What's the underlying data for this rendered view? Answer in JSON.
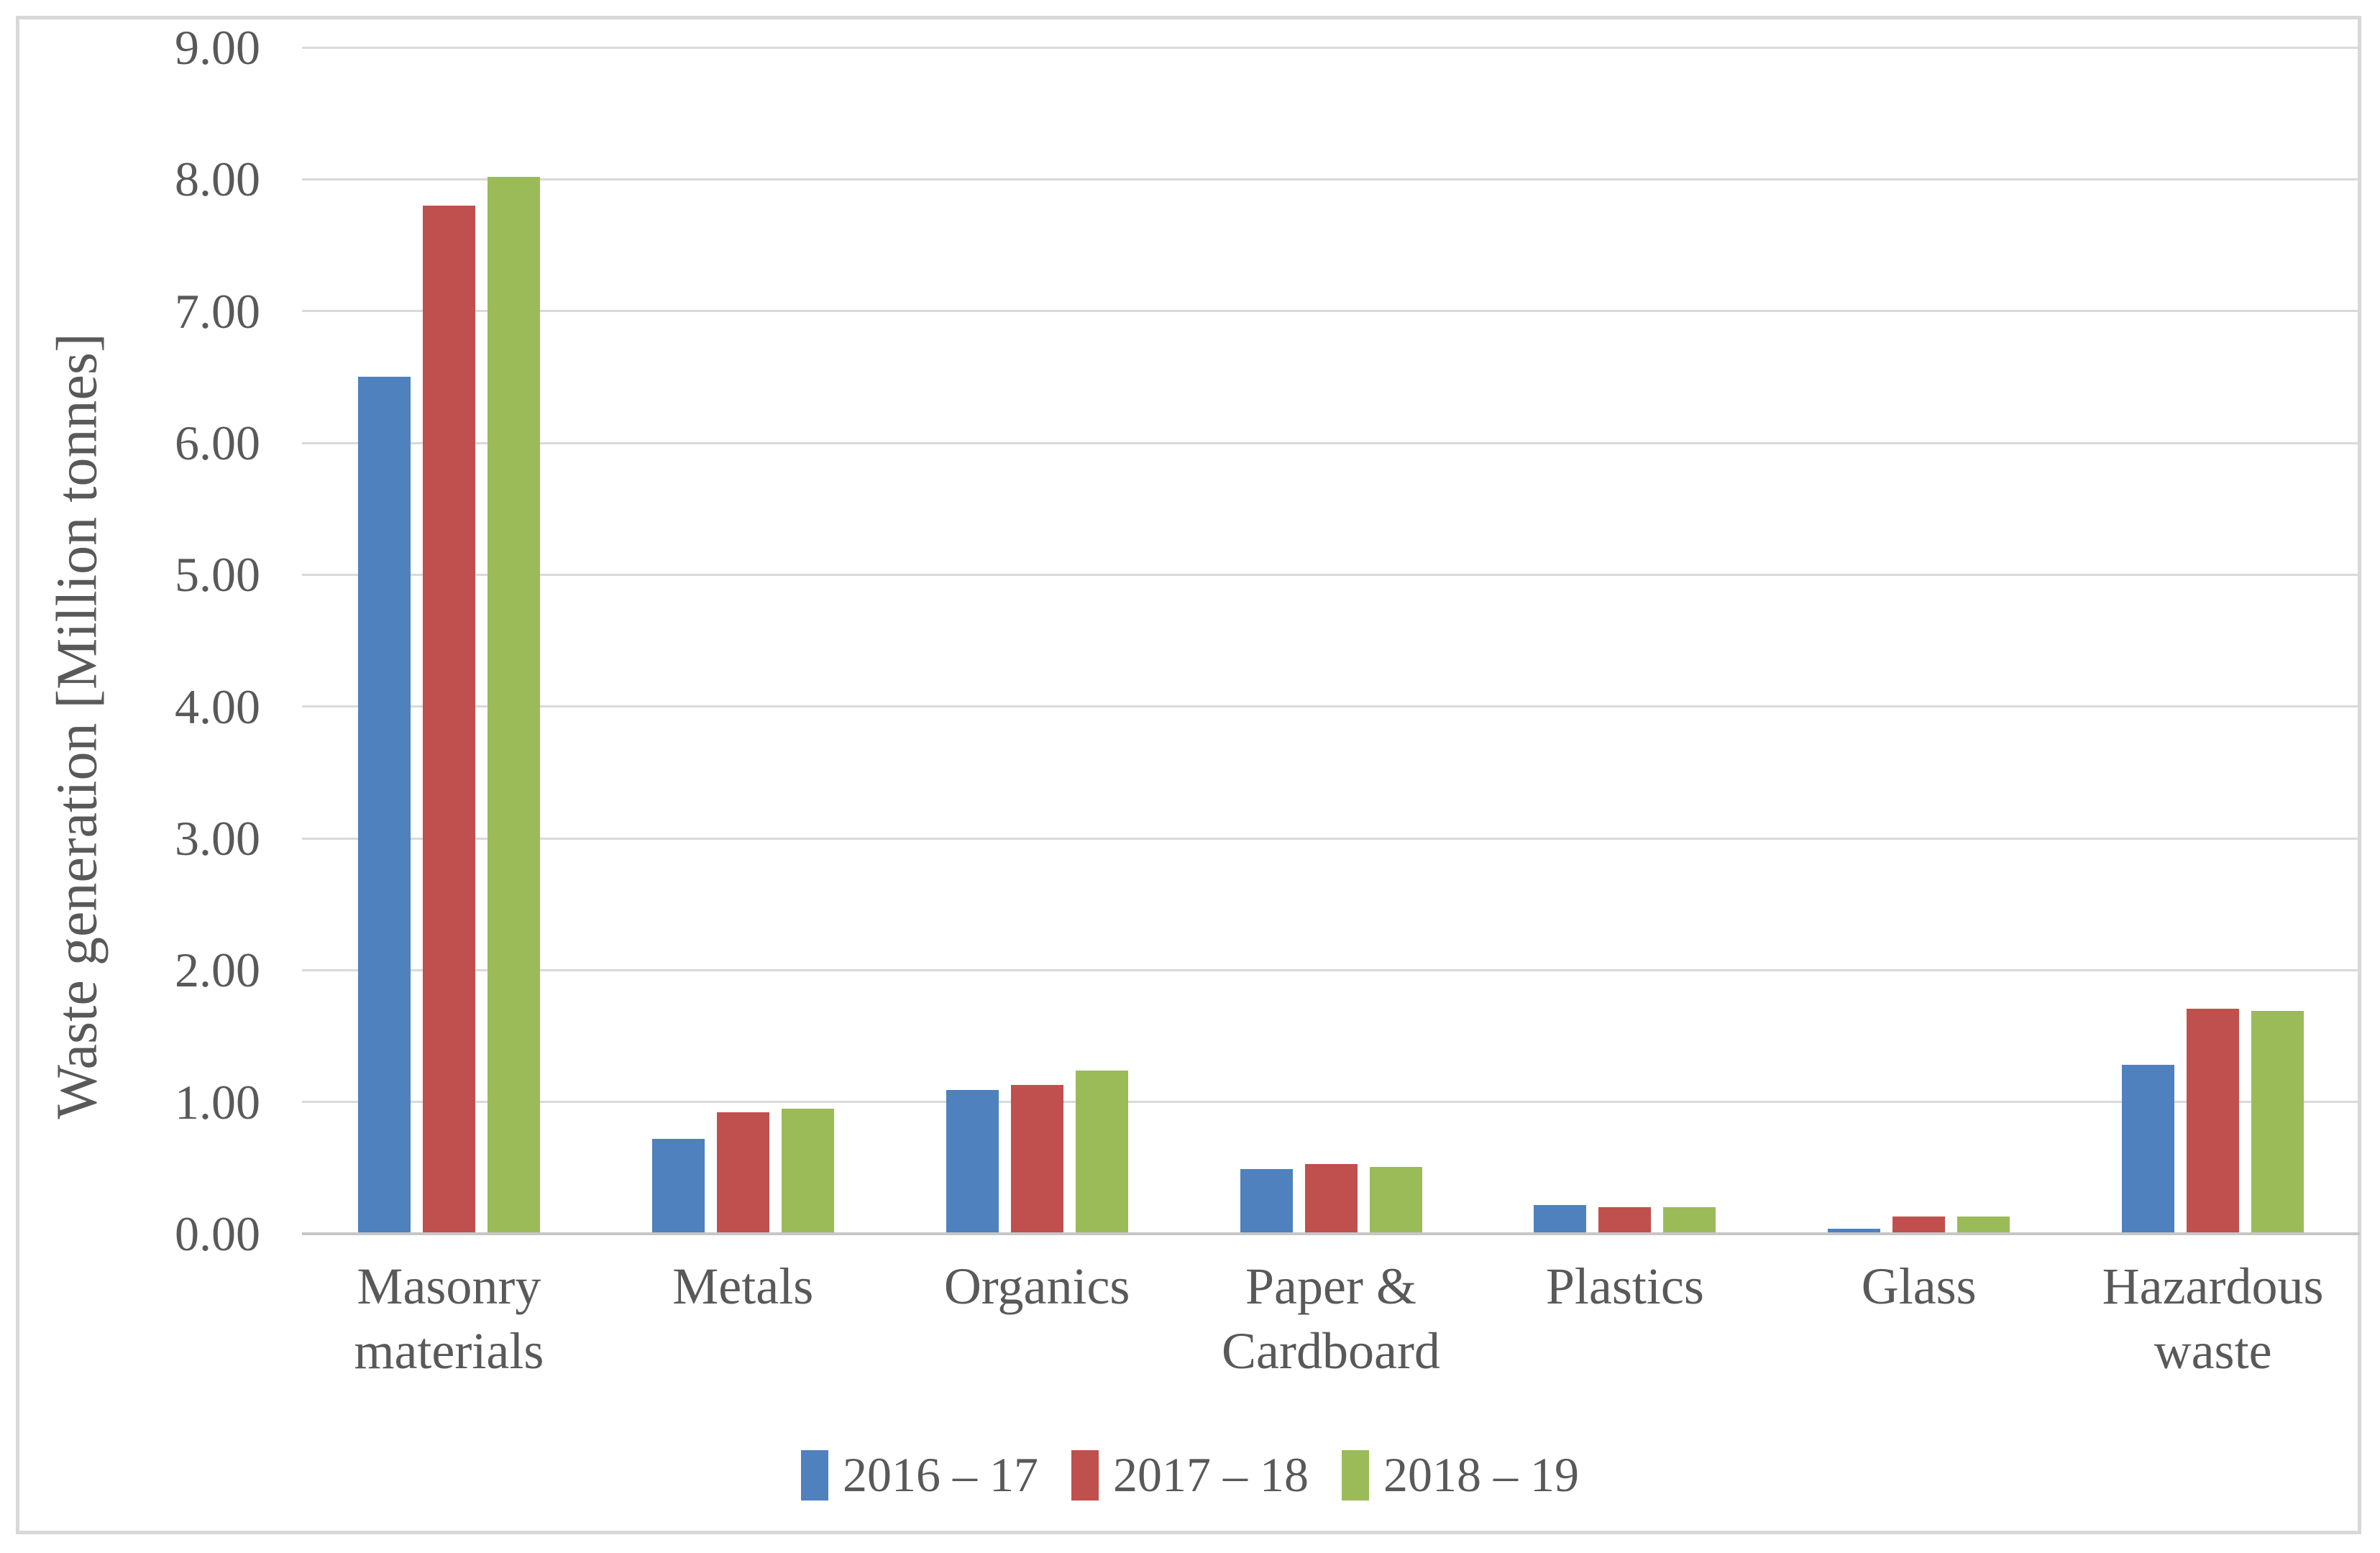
{
  "chart_data": {
    "type": "bar",
    "title": "",
    "xlabel": "",
    "ylabel": "Waste generation [Million tonnes]",
    "ylim": [
      0,
      9
    ],
    "ytick_labels": [
      "0.00",
      "1.00",
      "2.00",
      "3.00",
      "4.00",
      "5.00",
      "6.00",
      "7.00",
      "8.00",
      "9.00"
    ],
    "grid": true,
    "legend_position": "bottom",
    "categories": [
      "Masonry materials",
      "Metals",
      "Organics",
      "Paper & Cardboard",
      "Plastics",
      "Glass",
      "Hazardous waste"
    ],
    "category_label_lines": [
      [
        "Masonry",
        "materials"
      ],
      [
        "Metals"
      ],
      [
        "Organics"
      ],
      [
        "Paper &",
        "Cardboard"
      ],
      [
        "Plastics"
      ],
      [
        "Glass"
      ],
      [
        "Hazardous",
        "waste"
      ]
    ],
    "series": [
      {
        "name": "2016 – 17",
        "color": "#4E81BD",
        "values": [
          6.5,
          0.72,
          1.09,
          0.49,
          0.22,
          0.04,
          1.28
        ]
      },
      {
        "name": "2017 – 18",
        "color": "#C0504D",
        "values": [
          7.8,
          0.92,
          1.13,
          0.53,
          0.2,
          0.13,
          1.71
        ]
      },
      {
        "name": "2018 – 19",
        "color": "#9BBB59",
        "values": [
          8.02,
          0.95,
          1.24,
          0.51,
          0.2,
          0.13,
          1.69
        ]
      }
    ]
  },
  "colors": {
    "background": "#FFFFFF",
    "text": "#595959",
    "gridline": "#D9D9D9",
    "axis_line": "#C6C6C6",
    "border": "#D8D8D8"
  }
}
